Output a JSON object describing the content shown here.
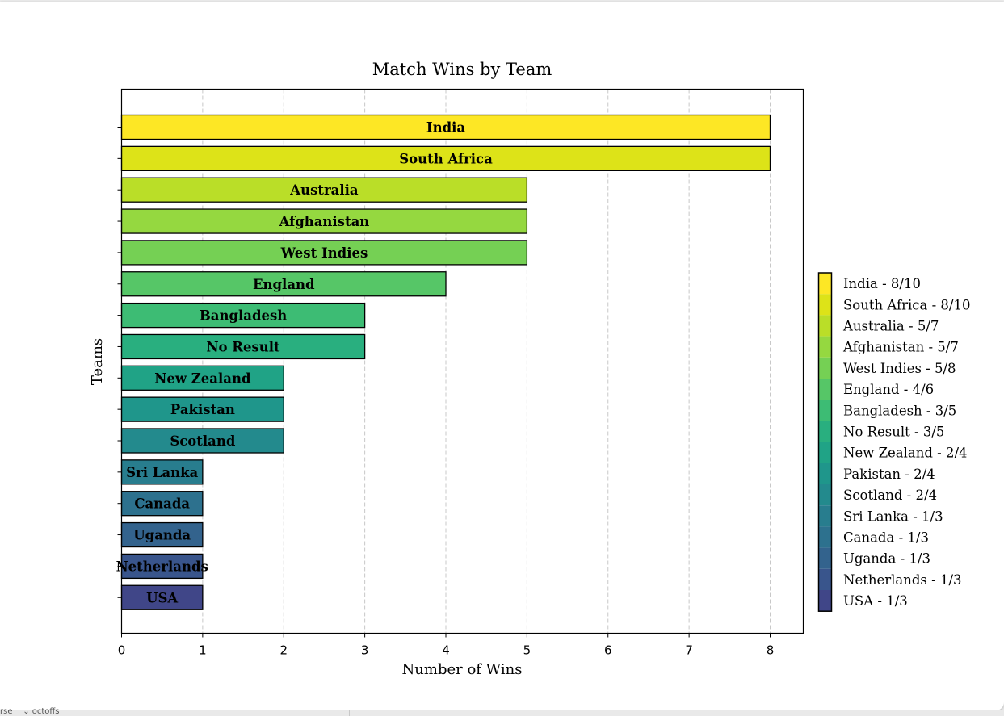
{
  "window_strip_text": "rse    ⌄ octoffs",
  "chart_data": {
    "type": "bar",
    "orientation": "horizontal",
    "title": "Match Wins by Team",
    "xlabel": "Number of Wins",
    "ylabel": "Teams",
    "xlim": [
      0,
      8.4
    ],
    "xticks": [
      "0",
      "1",
      "2",
      "3",
      "4",
      "5",
      "6",
      "7",
      "8"
    ],
    "grid": "x-axis dashed",
    "legend_position": "right",
    "categories": [
      "India",
      "South Africa",
      "Australia",
      "Afghanistan",
      "West Indies",
      "England",
      "Bangladesh",
      "No Result",
      "New Zealand",
      "Pakistan",
      "Scotland",
      "Sri Lanka",
      "Canada",
      "Uganda",
      "Netherlands",
      "USA"
    ],
    "values": [
      8,
      8,
      5,
      5,
      5,
      4,
      3,
      3,
      2,
      2,
      2,
      1,
      1,
      1,
      1,
      1
    ],
    "legend": [
      "India - 8/10",
      "South Africa - 8/10",
      "Australia - 5/7",
      "Afghanistan - 5/7",
      "West Indies - 5/8",
      "England - 4/6",
      "Bangladesh - 3/5",
      "No Result - 3/5",
      "New Zealand - 2/4",
      "Pakistan - 2/4",
      "Scotland - 2/4",
      "Sri Lanka - 1/3",
      "Canada - 1/3",
      "Uganda - 1/3",
      "Netherlands - 1/3",
      "USA - 1/3"
    ],
    "colors": [
      "#fde725",
      "#dde318",
      "#bade28",
      "#95d840",
      "#75d054",
      "#56c667",
      "#3dbc74",
      "#29af7f",
      "#20a386",
      "#1f968b",
      "#238a8d",
      "#287d8e",
      "#2d718e",
      "#33638d",
      "#39558c",
      "#404688"
    ]
  }
}
